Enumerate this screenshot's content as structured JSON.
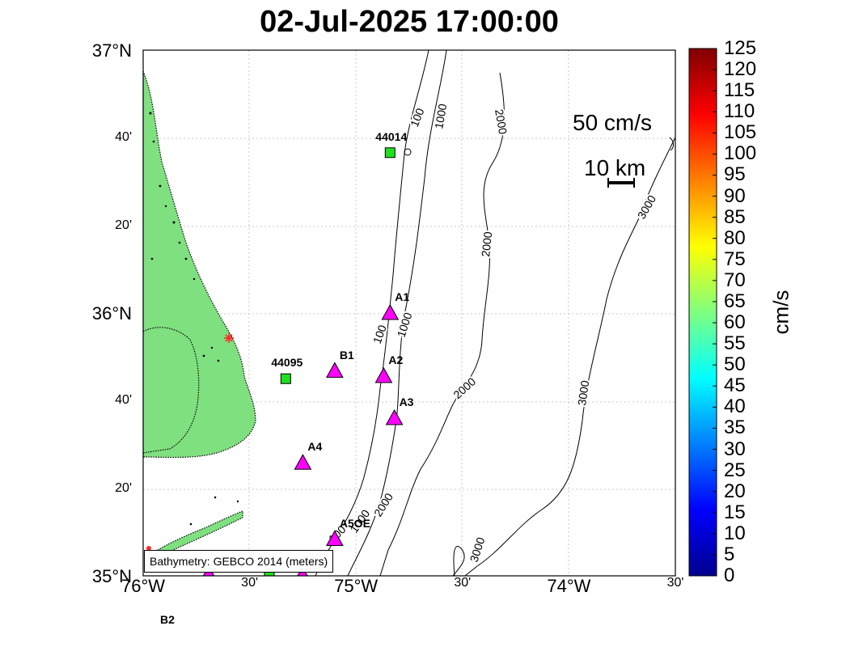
{
  "title": "02-Jul-2025 17:00:00",
  "lat_ticks": [
    {
      "label": "37°N",
      "lat": 37.0,
      "major": true
    },
    {
      "label": "40'",
      "lat": 36.6667,
      "major": false
    },
    {
      "label": "20'",
      "lat": 36.3333,
      "major": false
    },
    {
      "label": "36°N",
      "lat": 36.0,
      "major": true
    },
    {
      "label": "40'",
      "lat": 35.6667,
      "major": false
    },
    {
      "label": "20'",
      "lat": 35.3333,
      "major": false
    },
    {
      "label": "35°N",
      "lat": 35.0,
      "major": true
    }
  ],
  "lon_ticks": [
    {
      "label": "76°W",
      "lon": -76.0,
      "major": true
    },
    {
      "label": "30'",
      "lon": -75.5,
      "major": false
    },
    {
      "label": "75°W",
      "lon": -75.0,
      "major": true
    },
    {
      "label": "30'",
      "lon": -74.5,
      "major": false
    },
    {
      "label": "74°W",
      "lon": -74.0,
      "major": true
    },
    {
      "label": "30'",
      "lon": -73.5,
      "major": false
    }
  ],
  "colorbar": {
    "unit": "cm/s",
    "min": 0,
    "max": 125,
    "labels": [
      "0",
      "5",
      "10",
      "15",
      "20",
      "25",
      "30",
      "35",
      "40",
      "45",
      "50",
      "55",
      "60",
      "65",
      "70",
      "75",
      "80",
      "85",
      "90",
      "95",
      "100",
      "105",
      "110",
      "115",
      "120",
      "125"
    ]
  },
  "speed_scale_label": "50 cm/s",
  "distance_scale_label": "10 km",
  "bathymetry_source": "Bathymetry: GEBCO 2014 (meters)",
  "contour_labels": [
    "100",
    "1000",
    "2000",
    "3000"
  ],
  "buoys": [
    {
      "id": "44014",
      "lat": 36.61,
      "lon": -74.84
    },
    {
      "id": "44095",
      "lat": 35.75,
      "lon": -75.33
    }
  ],
  "stations": [
    {
      "id": "A1",
      "lat": 36.0,
      "lon": -74.84
    },
    {
      "id": "A2",
      "lat": 35.76,
      "lon": -74.87
    },
    {
      "id": "A3",
      "lat": 35.6,
      "lon": -74.82
    },
    {
      "id": "A4",
      "lat": 35.43,
      "lon": -75.25
    },
    {
      "id": "A5OE",
      "lat": 35.14,
      "lon": -75.1
    },
    {
      "id": "B1",
      "lat": 35.78,
      "lon": -75.1
    }
  ],
  "offmap_label": "B2",
  "colors": {
    "land": "#7fe07f",
    "station_marker": "#ff00ff",
    "buoy_marker": "#1ee01e",
    "grid": "#c8c8c8",
    "site_marker": "#ff2a2a"
  }
}
